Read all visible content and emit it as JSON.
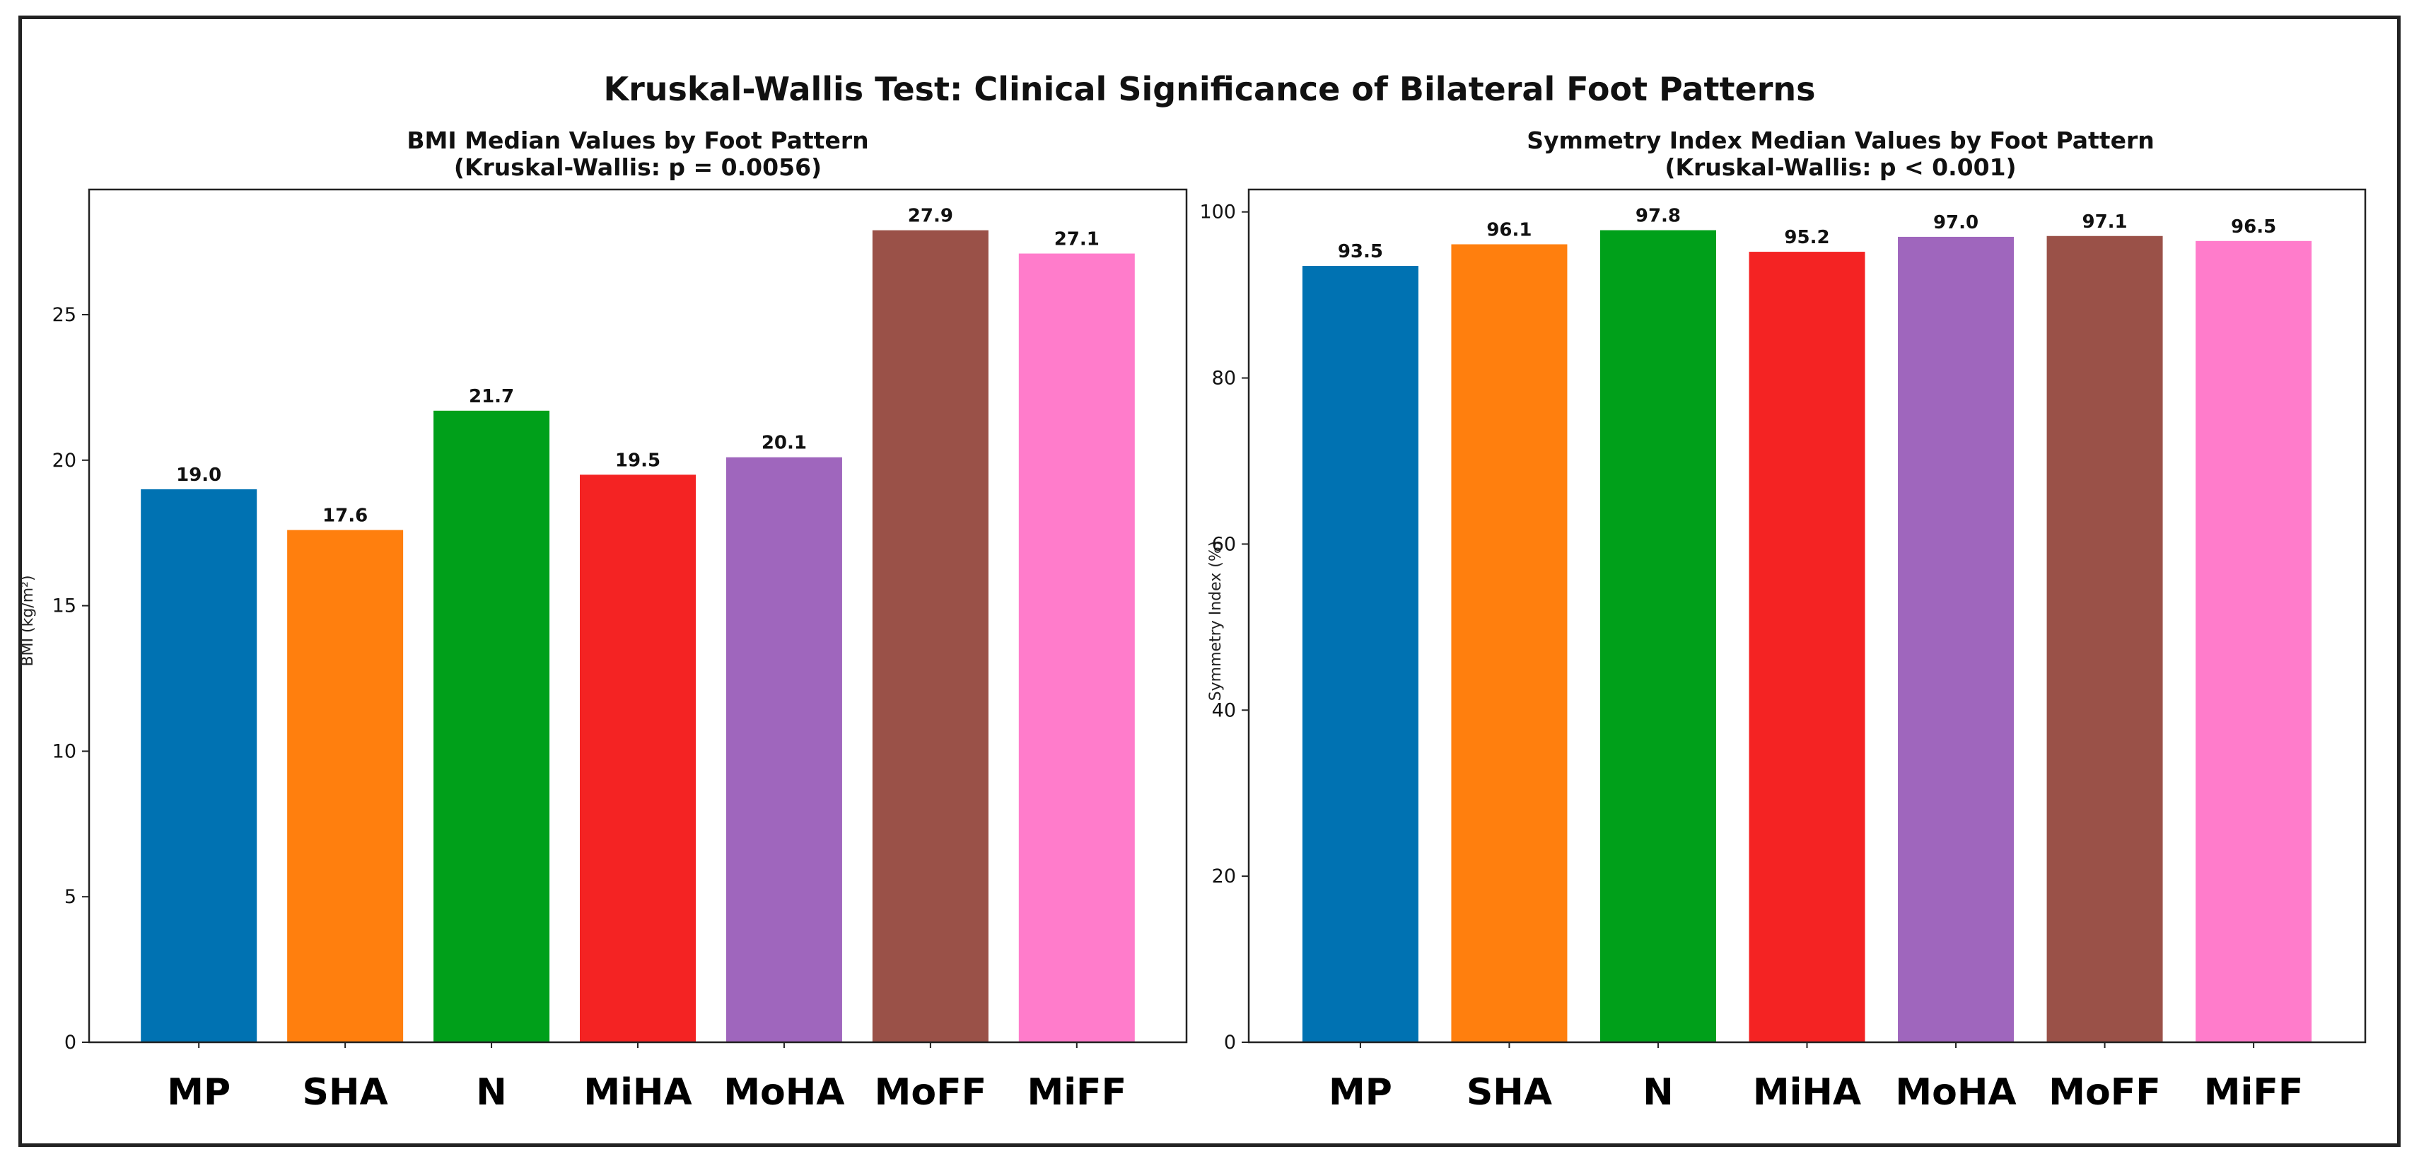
{
  "figure_title": "Kruskal-Wallis Test: Clinical Significance of Bilateral Foot Patterns",
  "chart_data": [
    {
      "type": "bar",
      "title": "BMI Median Values by Foot Pattern",
      "subtitle": "(Kruskal-Wallis:  p = 0.0056)",
      "xlabel": "",
      "ylabel": "BMI (kg/m²)",
      "categories": [
        "MP",
        "SHA",
        "N",
        "MiHA",
        "MoHA",
        "MoFF",
        "MiFF"
      ],
      "values": [
        19.0,
        17.6,
        21.7,
        19.5,
        20.1,
        27.9,
        27.1
      ],
      "value_labels": [
        "19.0",
        "17.6",
        "21.7",
        "19.5",
        "20.1",
        "27.9",
        "27.1"
      ],
      "yticks": [
        0,
        5,
        10,
        15,
        20,
        25
      ],
      "ylim": [
        0,
        29.3
      ],
      "grid": false
    },
    {
      "type": "bar",
      "title": "Symmetry Index Median Values by Foot Pattern",
      "subtitle": "(Kruskal-Wallis:  p < 0.001)",
      "xlabel": "",
      "ylabel": "Symmetry Index (%)",
      "categories": [
        "MP",
        "SHA",
        "N",
        "MiHA",
        "MoHA",
        "MoFF",
        "MiFF"
      ],
      "values": [
        93.5,
        96.1,
        97.8,
        95.2,
        97.0,
        97.1,
        96.5
      ],
      "value_labels": [
        "93.5",
        "96.1",
        "97.8",
        "95.2",
        "97.0",
        "97.1",
        "96.5"
      ],
      "yticks": [
        0,
        20,
        40,
        60,
        80,
        100
      ],
      "ylim": [
        0,
        102.7
      ],
      "grid": false
    }
  ],
  "colors": [
    "#0072b2",
    "#ff7f0e",
    "#00a01a",
    "#f42323",
    "#9f66bd",
    "#9a5148",
    "#ff7ccb"
  ]
}
